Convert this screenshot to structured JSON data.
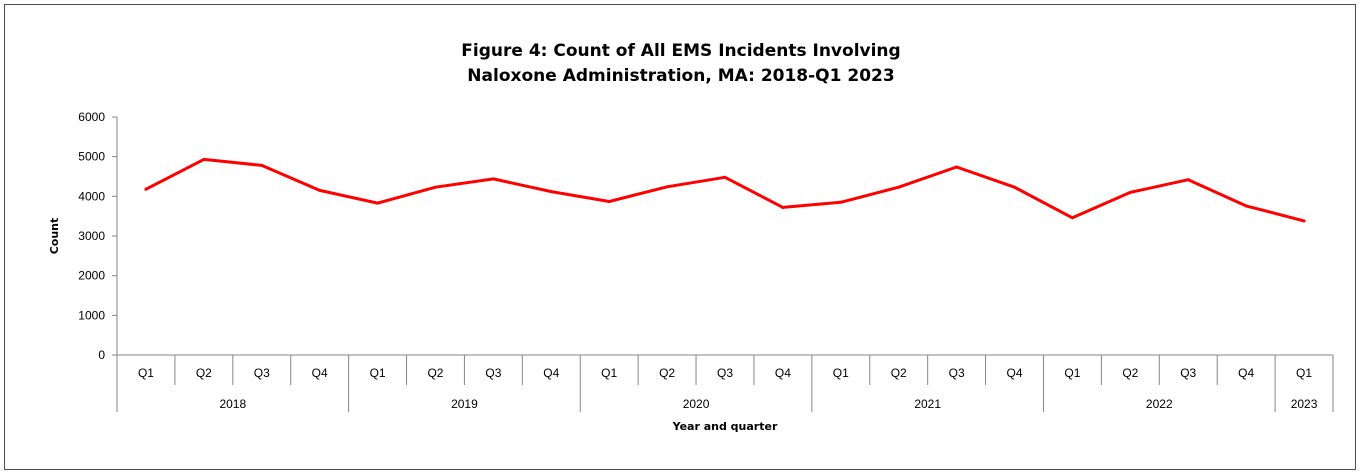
{
  "chart_data": {
    "type": "line",
    "title_lines": [
      "Figure 4: Count of All EMS Incidents Involving",
      "Naloxone Administration, MA: 2018-Q1 2023"
    ],
    "ylabel": "Count",
    "xlabel": "Year and quarter",
    "ylim": [
      0,
      6000
    ],
    "y_ticks": [
      0,
      1000,
      2000,
      3000,
      4000,
      5000,
      6000
    ],
    "grid": false,
    "legend": "none",
    "line_color": "#ff0000",
    "x_quarters": [
      "Q1",
      "Q2",
      "Q3",
      "Q4",
      "Q1",
      "Q2",
      "Q3",
      "Q4",
      "Q1",
      "Q2",
      "Q3",
      "Q4",
      "Q1",
      "Q2",
      "Q3",
      "Q4",
      "Q1",
      "Q2",
      "Q3",
      "Q4",
      "Q1"
    ],
    "x_years": [
      {
        "label": "2018",
        "span": 4
      },
      {
        "label": "2019",
        "span": 4
      },
      {
        "label": "2020",
        "span": 4
      },
      {
        "label": "2021",
        "span": 4
      },
      {
        "label": "2022",
        "span": 4
      },
      {
        "label": "2023",
        "span": 1
      }
    ],
    "series": [
      {
        "values": [
          4180,
          4930,
          4780,
          4150,
          3830,
          4230,
          4440,
          4120,
          3870,
          4240,
          4480,
          3720,
          3850,
          4230,
          4740,
          4230,
          3460,
          4100,
          4420,
          3760,
          3380
        ]
      }
    ]
  }
}
